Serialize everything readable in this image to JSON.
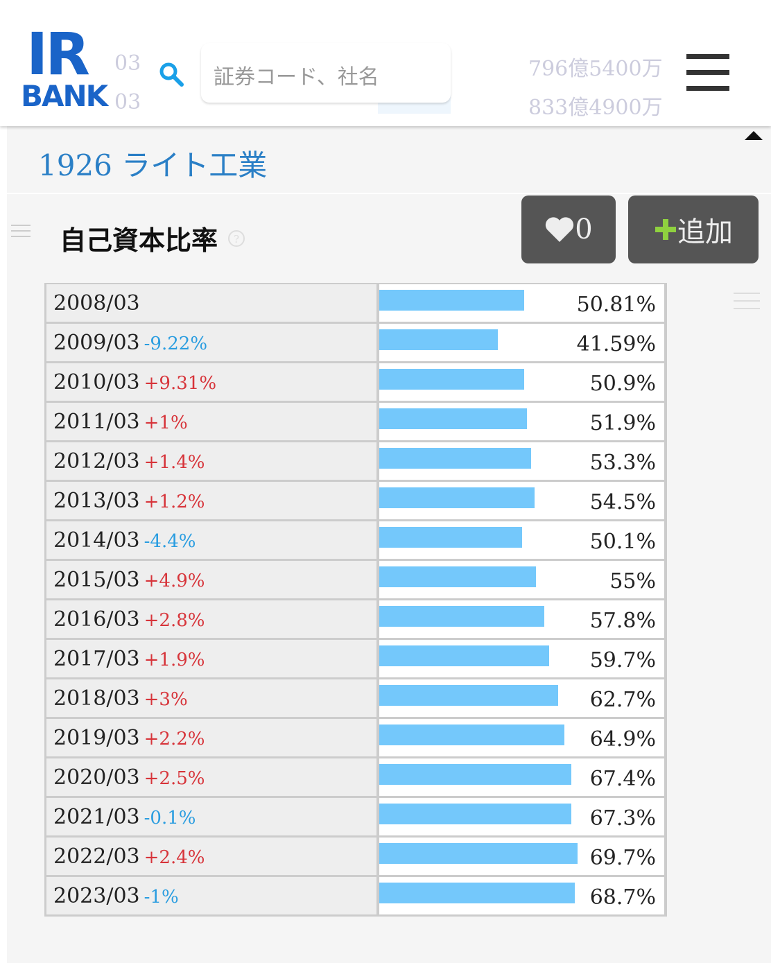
{
  "header": {
    "logo_top": "IR",
    "logo_bottom": "BANK",
    "search_placeholder": "証券コード、社名",
    "background_rows": [
      {
        "period": "03",
        "amount": "796億5400万"
      },
      {
        "period": "03",
        "amount": "833億4900万"
      }
    ]
  },
  "company": "1926 ライト工業",
  "section_title": "自己資本比率",
  "favorite_count": 0,
  "add_button": "追加",
  "bar_color": "#74c8fb",
  "rows": [
    {
      "period": "2008/03",
      "value": 50.81,
      "value_label": "50.81%"
    },
    {
      "period": "2009/03",
      "change": "-9.22%",
      "value": 41.59,
      "value_label": "41.59%"
    },
    {
      "period": "2010/03",
      "change": "+9.31%",
      "value": 50.9,
      "value_label": "50.9%"
    },
    {
      "period": "2011/03",
      "change": "+1%",
      "value": 51.9,
      "value_label": "51.9%"
    },
    {
      "period": "2012/03",
      "change": "+1.4%",
      "value": 53.3,
      "value_label": "53.3%"
    },
    {
      "period": "2013/03",
      "change": "+1.2%",
      "value": 54.5,
      "value_label": "54.5%"
    },
    {
      "period": "2014/03",
      "change": "-4.4%",
      "value": 50.1,
      "value_label": "50.1%"
    },
    {
      "period": "2015/03",
      "change": "+4.9%",
      "value": 55,
      "value_label": "55%"
    },
    {
      "period": "2016/03",
      "change": "+2.8%",
      "value": 57.8,
      "value_label": "57.8%"
    },
    {
      "period": "2017/03",
      "change": "+1.9%",
      "value": 59.7,
      "value_label": "59.7%"
    },
    {
      "period": "2018/03",
      "change": "+3%",
      "value": 62.7,
      "value_label": "62.7%"
    },
    {
      "period": "2019/03",
      "change": "+2.2%",
      "value": 64.9,
      "value_label": "64.9%"
    },
    {
      "period": "2020/03",
      "change": "+2.5%",
      "value": 67.4,
      "value_label": "67.4%"
    },
    {
      "period": "2021/03",
      "change": "-0.1%",
      "value": 67.3,
      "value_label": "67.3%"
    },
    {
      "period": "2022/03",
      "change": "+2.4%",
      "value": 69.7,
      "value_label": "69.7%"
    },
    {
      "period": "2023/03",
      "change": "-1%",
      "value": 68.7,
      "value_label": "68.7%"
    }
  ]
}
